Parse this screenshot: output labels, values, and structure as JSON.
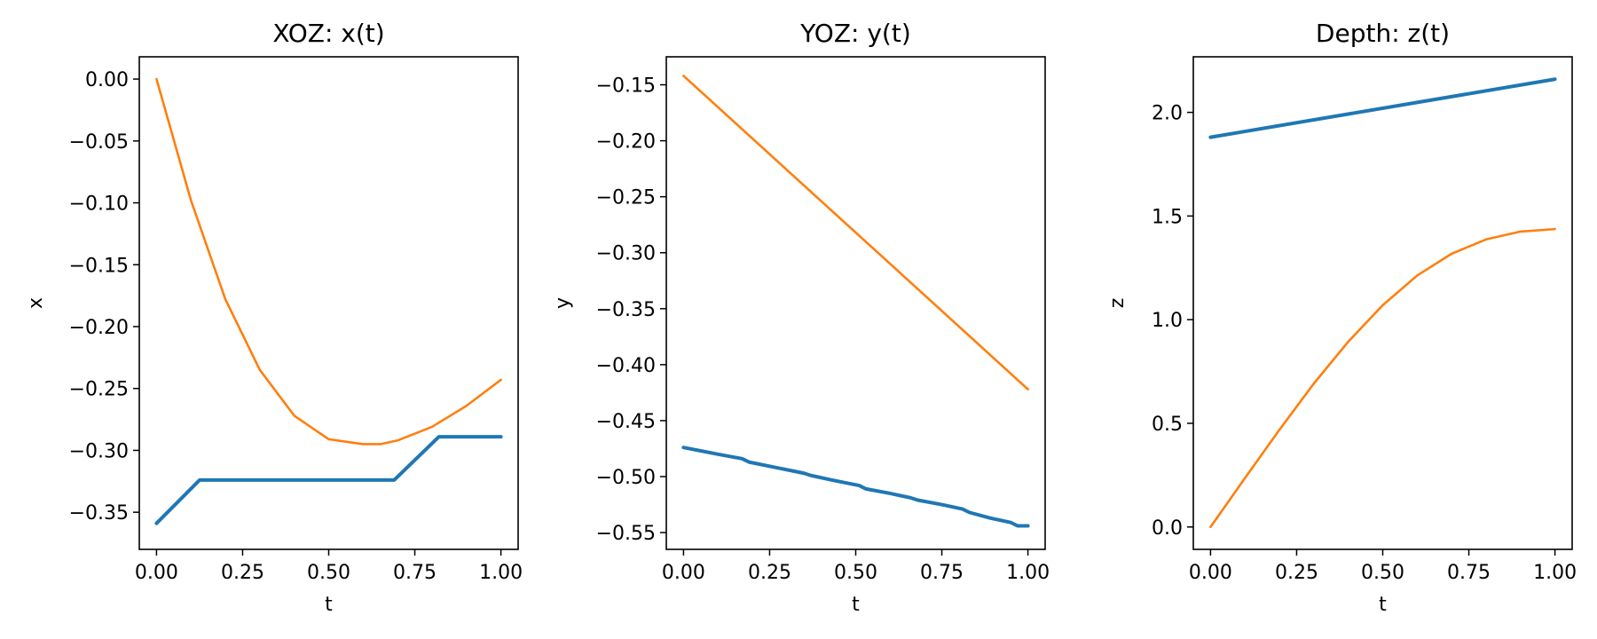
{
  "chart_data": [
    {
      "type": "line",
      "title": "XOZ: x(t)",
      "xlabel": "t",
      "ylabel": "x",
      "xlim": [
        -0.05,
        1.05
      ],
      "ylim": [
        -0.38,
        0.018
      ],
      "xticks": [
        0,
        0.25,
        0.5,
        0.75,
        1
      ],
      "xtick_labels": [
        "0.00",
        "0.25",
        "0.50",
        "0.75",
        "1.00"
      ],
      "yticks": [
        -0.35,
        -0.3,
        -0.25,
        -0.2,
        -0.15,
        -0.1,
        -0.05,
        0
      ],
      "ytick_labels": [
        "−0.35",
        "−0.30",
        "−0.25",
        "−0.20",
        "−0.15",
        "−0.10",
        "−0.05",
        "0.00"
      ],
      "grid": false,
      "series": [
        {
          "color": "#1f77b4",
          "x": [
            0,
            0.125,
            0.69,
            0.82,
            1
          ],
          "y": [
            -0.359,
            -0.324,
            -0.324,
            -0.289,
            -0.289
          ]
        },
        {
          "color": "#ff7f0e",
          "x": [
            0,
            0.1,
            0.2,
            0.3,
            0.4,
            0.5,
            0.6,
            0.65,
            0.7,
            0.8,
            0.9,
            1
          ],
          "y": [
            0,
            -0.098,
            -0.178,
            -0.235,
            -0.272,
            -0.291,
            -0.295,
            -0.295,
            -0.292,
            -0.281,
            -0.264,
            -0.243
          ]
        }
      ]
    },
    {
      "type": "line",
      "title": "YOZ: y(t)",
      "xlabel": "t",
      "ylabel": "y",
      "xlim": [
        -0.05,
        1.05
      ],
      "ylim": [
        -0.565,
        -0.125
      ],
      "xticks": [
        0,
        0.25,
        0.5,
        0.75,
        1
      ],
      "xtick_labels": [
        "0.00",
        "0.25",
        "0.50",
        "0.75",
        "1.00"
      ],
      "yticks": [
        -0.55,
        -0.5,
        -0.45,
        -0.4,
        -0.35,
        -0.3,
        -0.25,
        -0.2,
        -0.15
      ],
      "ytick_labels": [
        "−0.55",
        "−0.50",
        "−0.45",
        "−0.40",
        "−0.35",
        "−0.30",
        "−0.25",
        "−0.20",
        "−0.15"
      ],
      "grid": false,
      "series": [
        {
          "color": "#1f77b4",
          "x": [
            0,
            0.1,
            0.17,
            0.19,
            0.27,
            0.35,
            0.37,
            0.43,
            0.51,
            0.53,
            0.6,
            0.66,
            0.68,
            0.75,
            0.81,
            0.83,
            0.89,
            0.95,
            0.97,
            1
          ],
          "y": [
            -0.474,
            -0.48,
            -0.484,
            -0.487,
            -0.492,
            -0.497,
            -0.499,
            -0.503,
            -0.508,
            -0.511,
            -0.515,
            -0.519,
            -0.521,
            -0.525,
            -0.529,
            -0.532,
            -0.537,
            -0.541,
            -0.544,
            -0.544
          ]
        },
        {
          "color": "#ff7f0e",
          "x": [
            0,
            1
          ],
          "y": [
            -0.142,
            -0.422
          ]
        }
      ]
    },
    {
      "type": "line",
      "title": "Depth: z(t)",
      "xlabel": "t",
      "ylabel": "z",
      "xlim": [
        -0.05,
        1.05
      ],
      "ylim": [
        -0.108,
        2.268
      ],
      "xticks": [
        0,
        0.25,
        0.5,
        0.75,
        1
      ],
      "xtick_labels": [
        "0.00",
        "0.25",
        "0.50",
        "0.75",
        "1.00"
      ],
      "yticks": [
        0,
        0.5,
        1,
        1.5,
        2
      ],
      "ytick_labels": [
        "0.0",
        "0.5",
        "1.0",
        "1.5",
        "2.0"
      ],
      "grid": false,
      "series": [
        {
          "color": "#1f77b4",
          "x": [
            0,
            1
          ],
          "y": [
            1.88,
            2.16
          ]
        },
        {
          "color": "#ff7f0e",
          "x": [
            0,
            0.1,
            0.2,
            0.3,
            0.4,
            0.5,
            0.6,
            0.7,
            0.8,
            0.9,
            1
          ],
          "y": [
            0,
            0.236,
            0.469,
            0.692,
            0.894,
            1.07,
            1.213,
            1.318,
            1.387,
            1.425,
            1.437
          ]
        }
      ]
    }
  ]
}
